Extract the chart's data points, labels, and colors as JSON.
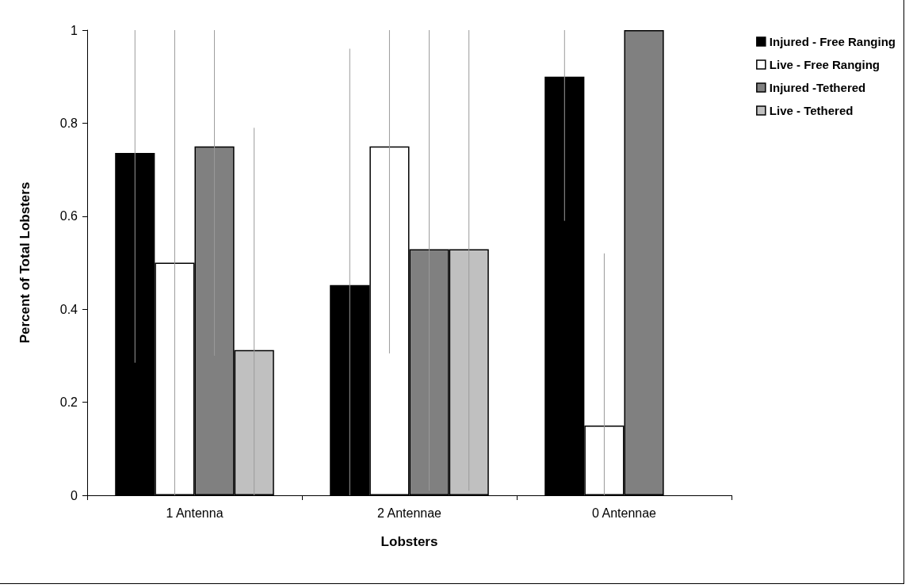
{
  "chart_data": {
    "type": "bar",
    "xlabel": "Lobsters",
    "ylabel": "Percent of Total Lobsters",
    "categories": [
      "1 Antenna",
      "2 Antennae",
      "0 Antennae"
    ],
    "series": [
      {
        "name": "Injured - Free Ranging",
        "color": "#000000",
        "values": [
          0.736,
          0.452,
          0.9
        ],
        "errors": [
          [
            0.285,
            1
          ],
          [
            0,
            0.96
          ],
          [
            0.59,
            1
          ]
        ]
      },
      {
        "name": "Live - Free Ranging",
        "color": "#ffffff",
        "values": [
          0.5,
          0.75,
          0.15
        ],
        "errors": [
          [
            0,
            1
          ],
          [
            0.305,
            1
          ],
          [
            0,
            0.52
          ]
        ]
      },
      {
        "name": "Injured -Tethered",
        "color": "#808080",
        "values": [
          0.75,
          0.529,
          1.0
        ],
        "errors": [
          [
            0.3,
            1
          ],
          [
            0.01,
            1
          ],
          null
        ]
      },
      {
        "name": "Live - Tethered",
        "color": "#c0c0c0",
        "values": [
          0.312,
          0.529,
          null
        ],
        "errors": [
          [
            0,
            0.79
          ],
          [
            0.01,
            1
          ],
          null
        ]
      }
    ],
    "ylim": [
      0,
      1
    ],
    "yticks": [
      0,
      0.2,
      0.4,
      0.6,
      0.8,
      1
    ],
    "grid": false,
    "legend": "top right"
  }
}
